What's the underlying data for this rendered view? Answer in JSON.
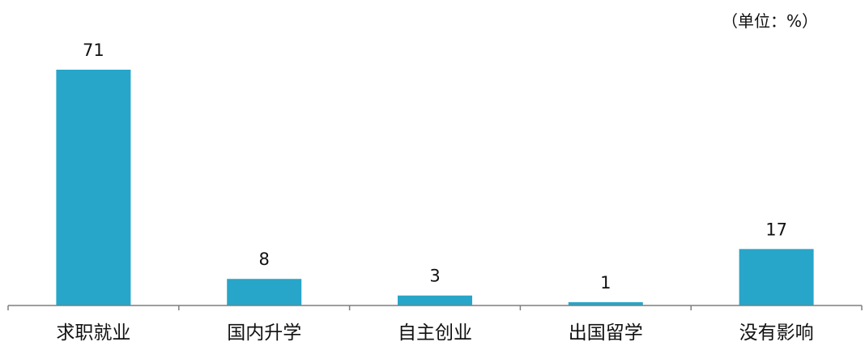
{
  "unit_label": "（单位：%）",
  "chart_data": {
    "type": "bar",
    "title": "",
    "xlabel": "",
    "ylabel": "",
    "unit": "（单位：%）",
    "categories": [
      "求职就业",
      "国内升学",
      "自主创业",
      "出国留学",
      "没有影响"
    ],
    "values": [
      71,
      8,
      3,
      1,
      17
    ],
    "ylim": [
      0,
      71
    ],
    "grid": false,
    "legend": "none",
    "colors": {
      "bar": "#27A6C9",
      "axis": "#7F7F7F",
      "text": "#111111"
    }
  }
}
